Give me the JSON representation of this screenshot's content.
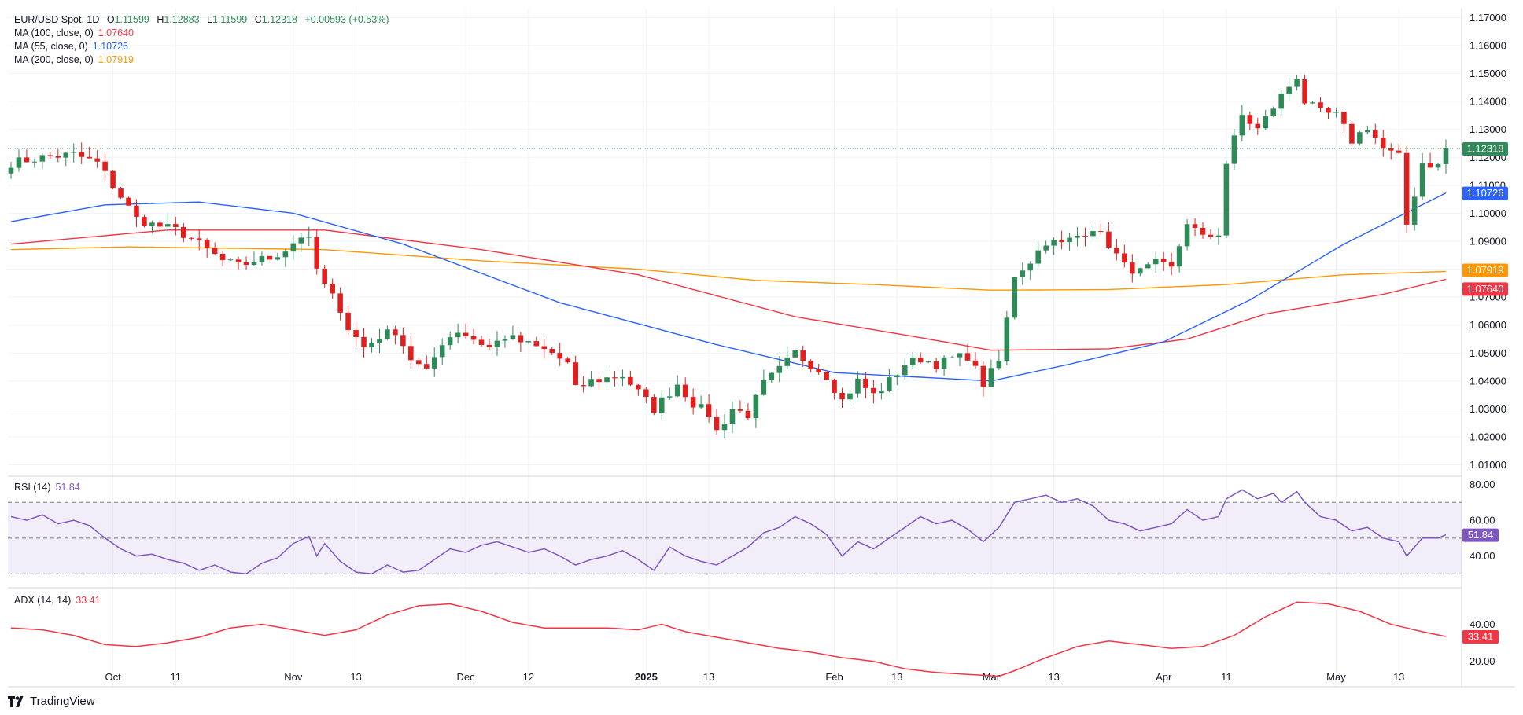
{
  "header": {
    "symbol": "EUR/USD Spot, 1D",
    "open_label": "O",
    "open": "1.11599",
    "high_label": "H",
    "high": "1.12883",
    "low_label": "L",
    "low": "1.11599",
    "close_label": "C",
    "close": "1.12318",
    "change": "+0.00593 (+0.53%)"
  },
  "ma_legend": [
    {
      "label": "MA (100, close, 0)",
      "value": "1.07640",
      "color": "#f23645"
    },
    {
      "label": "MA (55, close, 0)",
      "value": "1.10726",
      "color": "#2962ff"
    },
    {
      "label": "MA (200, close, 0)",
      "value": "1.07919",
      "color": "#ff9800"
    }
  ],
  "rsi_legend": {
    "label": "RSI (14)",
    "value": "51.84",
    "color": "#7e57c2"
  },
  "adx_legend": {
    "label": "ADX (14, 14)",
    "value": "33.41",
    "color": "#f23645"
  },
  "brand": "TradingView",
  "colors": {
    "up": "#26a69a",
    "down": "#ef5350",
    "up_body": "#2e8b57",
    "down_body": "#e0201f",
    "grid": "#f0f3fa",
    "text": "#131722"
  },
  "chart_data": [
    {
      "type": "candlestick",
      "title": "EUR/USD Spot, 1D",
      "price_ticks": [
        "1.17000",
        "1.16000",
        "1.15000",
        "1.14000",
        "1.13000",
        "1.12000",
        "1.11000",
        "1.10000",
        "1.09000",
        "1.08000",
        "1.07000",
        "1.06000",
        "1.05000",
        "1.04000",
        "1.03000",
        "1.02000",
        "1.01000"
      ],
      "ylim": [
        1.0065,
        1.1735
      ],
      "x_ticks": [
        {
          "label": "Oct",
          "i": 13,
          "bold": false
        },
        {
          "label": "11",
          "i": 21,
          "bold": false
        },
        {
          "label": "Nov",
          "i": 36,
          "bold": false
        },
        {
          "label": "13",
          "i": 44,
          "bold": false
        },
        {
          "label": "Dec",
          "i": 58,
          "bold": false
        },
        {
          "label": "12",
          "i": 66,
          "bold": false
        },
        {
          "label": "2025",
          "i": 81,
          "bold": true
        },
        {
          "label": "13",
          "i": 89,
          "bold": false
        },
        {
          "label": "Feb",
          "i": 105,
          "bold": false
        },
        {
          "label": "13",
          "i": 113,
          "bold": false
        },
        {
          "label": "Mar",
          "i": 125,
          "bold": false
        },
        {
          "label": "13",
          "i": 133,
          "bold": false
        },
        {
          "label": "Apr",
          "i": 147,
          "bold": false
        },
        {
          "label": "11",
          "i": 155,
          "bold": false
        },
        {
          "label": "May",
          "i": 169,
          "bold": false
        },
        {
          "label": "13",
          "i": 177,
          "bold": false
        }
      ],
      "last_price": 1.12318,
      "price_badges": [
        {
          "text": "1.12318",
          "value": 1.12318,
          "color": "#2e8b57"
        },
        {
          "text": "1.10726",
          "value": 1.10726,
          "color": "#2962ff"
        },
        {
          "text": "1.07919",
          "value": 1.07919,
          "color": "#ff9800"
        },
        {
          "text": "1.07640",
          "value": 1.0764,
          "color": "#f23645"
        }
      ],
      "close_path": [
        [
          0,
          1.118
        ],
        [
          4,
          1.12
        ],
        [
          8,
          1.121
        ],
        [
          11,
          1.118
        ],
        [
          14,
          1.106
        ],
        [
          16,
          1.098
        ],
        [
          18,
          1.096
        ],
        [
          21,
          1.094
        ],
        [
          23,
          1.091
        ],
        [
          25,
          1.087
        ],
        [
          27,
          1.083
        ],
        [
          29,
          1.081
        ],
        [
          31,
          1.083
        ],
        [
          33,
          1.084
        ],
        [
          35,
          1.087
        ],
        [
          37,
          1.092
        ],
        [
          38,
          1.09
        ],
        [
          39,
          1.08
        ],
        [
          40,
          1.074
        ],
        [
          42,
          1.066
        ],
        [
          43,
          1.059
        ],
        [
          45,
          1.052
        ],
        [
          47,
          1.056
        ],
        [
          49,
          1.058
        ],
        [
          51,
          1.048
        ],
        [
          53,
          1.043
        ],
        [
          55,
          1.054
        ],
        [
          57,
          1.058
        ],
        [
          59,
          1.055
        ],
        [
          61,
          1.052
        ],
        [
          63,
          1.056
        ],
        [
          65,
          1.054
        ],
        [
          67,
          1.052
        ],
        [
          69,
          1.05
        ],
        [
          71,
          1.046
        ],
        [
          72,
          1.037
        ],
        [
          74,
          1.04
        ],
        [
          76,
          1.041
        ],
        [
          78,
          1.042
        ],
        [
          80,
          1.036
        ],
        [
          82,
          1.03
        ],
        [
          84,
          1.036
        ],
        [
          85,
          1.039
        ],
        [
          87,
          1.032
        ],
        [
          89,
          1.028
        ],
        [
          90,
          1.022
        ],
        [
          92,
          1.03
        ],
        [
          94,
          1.028
        ],
        [
          96,
          1.039
        ],
        [
          98,
          1.044
        ],
        [
          100,
          1.05
        ],
        [
          102,
          1.046
        ],
        [
          104,
          1.042
        ],
        [
          106,
          1.033
        ],
        [
          108,
          1.04
        ],
        [
          110,
          1.035
        ],
        [
          112,
          1.04
        ],
        [
          114,
          1.046
        ],
        [
          116,
          1.048
        ],
        [
          118,
          1.046
        ],
        [
          120,
          1.048
        ],
        [
          122,
          1.049
        ],
        [
          124,
          1.039
        ],
        [
          126,
          1.047
        ],
        [
          127,
          1.062
        ],
        [
          128,
          1.078
        ],
        [
          130,
          1.083
        ],
        [
          132,
          1.09
        ],
        [
          134,
          1.089
        ],
        [
          136,
          1.092
        ],
        [
          138,
          1.095
        ],
        [
          140,
          1.089
        ],
        [
          142,
          1.081
        ],
        [
          144,
          1.079
        ],
        [
          146,
          1.082
        ],
        [
          148,
          1.08
        ],
        [
          150,
          1.097
        ],
        [
          152,
          1.091
        ],
        [
          154,
          1.093
        ],
        [
          155,
          1.118
        ],
        [
          157,
          1.135
        ],
        [
          159,
          1.13
        ],
        [
          161,
          1.138
        ],
        [
          162,
          1.142
        ],
        [
          164,
          1.149
        ],
        [
          165,
          1.14
        ],
        [
          167,
          1.136
        ],
        [
          169,
          1.135
        ],
        [
          171,
          1.126
        ],
        [
          173,
          1.131
        ],
        [
          175,
          1.123
        ],
        [
          177,
          1.12
        ],
        [
          178,
          1.096
        ],
        [
          180,
          1.118
        ],
        [
          182,
          1.117
        ],
        [
          183,
          1.123
        ]
      ],
      "wick_noise": 0.0038,
      "ma100": [
        [
          0,
          1.089
        ],
        [
          20,
          1.094
        ],
        [
          40,
          1.094
        ],
        [
          60,
          1.087
        ],
        [
          80,
          1.078
        ],
        [
          100,
          1.063
        ],
        [
          115,
          1.056
        ],
        [
          125,
          1.051
        ],
        [
          140,
          1.0515
        ],
        [
          150,
          1.055
        ],
        [
          160,
          1.064
        ],
        [
          175,
          1.071
        ],
        [
          183,
          1.0764
        ]
      ],
      "ma55": [
        [
          0,
          1.097
        ],
        [
          12,
          1.103
        ],
        [
          24,
          1.104
        ],
        [
          36,
          1.1
        ],
        [
          50,
          1.089
        ],
        [
          70,
          1.068
        ],
        [
          90,
          1.053
        ],
        [
          105,
          1.043
        ],
        [
          125,
          1.04
        ],
        [
          135,
          1.046
        ],
        [
          147,
          1.054
        ],
        [
          158,
          1.069
        ],
        [
          170,
          1.089
        ],
        [
          183,
          1.10726
        ]
      ],
      "ma200": [
        [
          0,
          1.087
        ],
        [
          15,
          1.088
        ],
        [
          40,
          1.087
        ],
        [
          60,
          1.083
        ],
        [
          80,
          1.08
        ],
        [
          95,
          1.076
        ],
        [
          110,
          1.0745
        ],
        [
          125,
          1.0725
        ],
        [
          140,
          1.0727
        ],
        [
          155,
          1.0745
        ],
        [
          170,
          1.078
        ],
        [
          183,
          1.07919
        ]
      ]
    },
    {
      "type": "line",
      "title": "RSI (14)",
      "ticks": [
        "80.00",
        "60.00",
        "40.00"
      ],
      "ylim": [
        24,
        82
      ],
      "band": [
        30,
        70
      ],
      "midline": 50,
      "last_value": 51.84,
      "badge": {
        "text": "51.84",
        "color": "#7e57c2"
      },
      "values": [
        [
          0,
          62
        ],
        [
          2,
          60
        ],
        [
          4,
          63
        ],
        [
          6,
          58
        ],
        [
          8,
          60
        ],
        [
          10,
          57
        ],
        [
          12,
          50
        ],
        [
          14,
          44
        ],
        [
          16,
          40
        ],
        [
          18,
          41
        ],
        [
          20,
          38
        ],
        [
          22,
          36
        ],
        [
          24,
          32
        ],
        [
          26,
          35
        ],
        [
          28,
          31
        ],
        [
          30,
          30
        ],
        [
          32,
          36
        ],
        [
          34,
          39
        ],
        [
          36,
          47
        ],
        [
          38,
          51
        ],
        [
          39,
          40
        ],
        [
          40,
          47
        ],
        [
          42,
          37
        ],
        [
          44,
          31
        ],
        [
          46,
          30
        ],
        [
          48,
          35
        ],
        [
          50,
          31
        ],
        [
          52,
          32
        ],
        [
          54,
          38
        ],
        [
          56,
          44
        ],
        [
          58,
          42
        ],
        [
          60,
          46
        ],
        [
          62,
          48
        ],
        [
          64,
          45
        ],
        [
          66,
          42
        ],
        [
          68,
          44
        ],
        [
          70,
          40
        ],
        [
          72,
          35
        ],
        [
          74,
          38
        ],
        [
          76,
          40
        ],
        [
          78,
          43
        ],
        [
          80,
          38
        ],
        [
          82,
          32
        ],
        [
          84,
          45
        ],
        [
          86,
          40
        ],
        [
          88,
          37
        ],
        [
          90,
          35
        ],
        [
          92,
          40
        ],
        [
          94,
          45
        ],
        [
          96,
          53
        ],
        [
          98,
          56
        ],
        [
          100,
          62
        ],
        [
          102,
          58
        ],
        [
          104,
          52
        ],
        [
          106,
          40
        ],
        [
          108,
          48
        ],
        [
          110,
          44
        ],
        [
          112,
          50
        ],
        [
          114,
          56
        ],
        [
          116,
          62
        ],
        [
          118,
          58
        ],
        [
          120,
          60
        ],
        [
          122,
          55
        ],
        [
          124,
          48
        ],
        [
          126,
          56
        ],
        [
          128,
          70
        ],
        [
          130,
          72
        ],
        [
          132,
          74
        ],
        [
          134,
          70
        ],
        [
          136,
          72
        ],
        [
          138,
          68
        ],
        [
          140,
          60
        ],
        [
          142,
          58
        ],
        [
          144,
          54
        ],
        [
          146,
          56
        ],
        [
          148,
          58
        ],
        [
          150,
          66
        ],
        [
          152,
          60
        ],
        [
          154,
          62
        ],
        [
          155,
          72
        ],
        [
          157,
          77
        ],
        [
          159,
          72
        ],
        [
          161,
          75
        ],
        [
          162,
          70
        ],
        [
          164,
          76
        ],
        [
          165,
          70
        ],
        [
          167,
          62
        ],
        [
          169,
          60
        ],
        [
          171,
          54
        ],
        [
          173,
          56
        ],
        [
          175,
          50
        ],
        [
          177,
          48
        ],
        [
          178,
          40
        ],
        [
          180,
          50
        ],
        [
          182,
          50
        ],
        [
          183,
          51.84
        ]
      ]
    },
    {
      "type": "line",
      "title": "ADX (14, 14)",
      "ticks": [
        "40.00",
        "20.00"
      ],
      "ylim": [
        8,
        58
      ],
      "last_value": 33.41,
      "badge": {
        "text": "33.41",
        "color": "#f23645"
      },
      "values": [
        [
          0,
          38
        ],
        [
          4,
          37
        ],
        [
          8,
          34
        ],
        [
          12,
          29
        ],
        [
          16,
          28
        ],
        [
          20,
          30
        ],
        [
          24,
          33
        ],
        [
          28,
          38
        ],
        [
          32,
          40
        ],
        [
          36,
          37
        ],
        [
          40,
          34
        ],
        [
          44,
          37
        ],
        [
          48,
          45
        ],
        [
          52,
          50
        ],
        [
          56,
          51
        ],
        [
          60,
          47
        ],
        [
          64,
          41
        ],
        [
          68,
          38
        ],
        [
          72,
          38
        ],
        [
          76,
          38
        ],
        [
          80,
          37
        ],
        [
          83,
          40
        ],
        [
          86,
          36
        ],
        [
          90,
          33
        ],
        [
          94,
          30
        ],
        [
          98,
          27
        ],
        [
          102,
          25
        ],
        [
          106,
          22
        ],
        [
          110,
          20
        ],
        [
          114,
          16
        ],
        [
          118,
          14
        ],
        [
          122,
          13
        ],
        [
          126,
          12
        ],
        [
          128,
          15
        ],
        [
          132,
          22
        ],
        [
          136,
          28
        ],
        [
          140,
          31
        ],
        [
          144,
          29
        ],
        [
          148,
          27
        ],
        [
          152,
          28
        ],
        [
          156,
          34
        ],
        [
          160,
          44
        ],
        [
          164,
          52
        ],
        [
          168,
          51
        ],
        [
          172,
          47
        ],
        [
          176,
          40
        ],
        [
          180,
          36
        ],
        [
          183,
          33.41
        ]
      ]
    }
  ]
}
